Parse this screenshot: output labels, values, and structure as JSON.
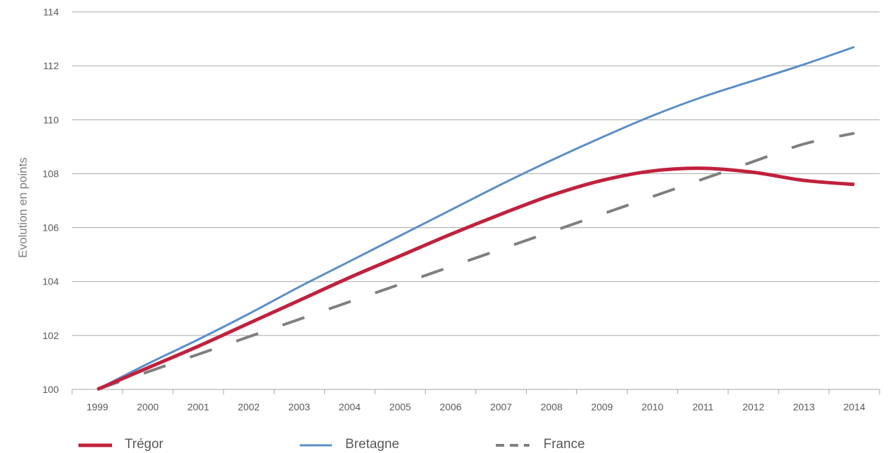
{
  "chart_data": {
    "type": "line",
    "title": "",
    "xlabel": "",
    "ylabel": "Evolution en points",
    "x": [
      "1999",
      "2000",
      "2001",
      "2002",
      "2003",
      "2004",
      "2005",
      "2006",
      "2007",
      "2008",
      "2009",
      "2010",
      "2011",
      "2012",
      "2013",
      "2014"
    ],
    "ylim": [
      100,
      114
    ],
    "yticks": [
      100,
      102,
      104,
      106,
      108,
      110,
      112,
      114
    ],
    "grid": true,
    "legend_position": "bottom",
    "series": [
      {
        "name": "Trégor",
        "color": "#c0213d",
        "style": "solid-thick",
        "values": [
          100,
          100.8,
          101.6,
          102.45,
          103.3,
          104.15,
          104.95,
          105.75,
          106.5,
          107.2,
          107.75,
          108.1,
          108.2,
          108.05,
          107.75,
          107.6
        ]
      },
      {
        "name": "Bretagne",
        "color": "#5b8ec9",
        "style": "solid",
        "values": [
          100,
          100.95,
          101.85,
          102.8,
          103.8,
          104.75,
          105.7,
          106.65,
          107.6,
          108.5,
          109.35,
          110.15,
          110.85,
          111.45,
          112.05,
          112.7
        ]
      },
      {
        "name": "France",
        "color": "#7f7f7f",
        "style": "dashed",
        "values": [
          100,
          100.65,
          101.3,
          101.95,
          102.6,
          103.25,
          103.9,
          104.55,
          105.2,
          105.85,
          106.5,
          107.15,
          107.8,
          108.45,
          109.1,
          109.5
        ]
      }
    ]
  }
}
